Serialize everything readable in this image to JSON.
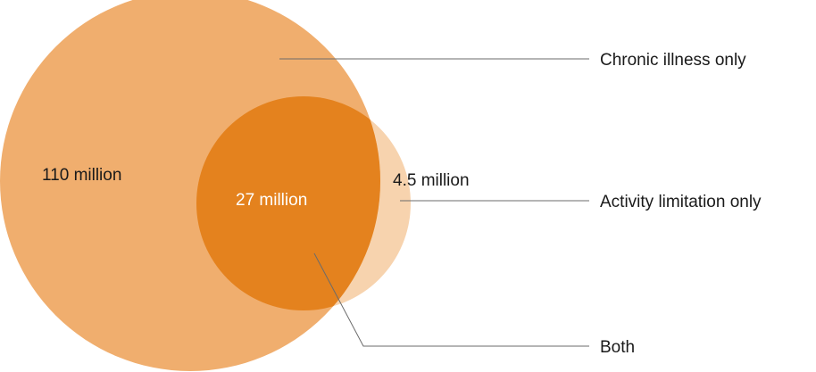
{
  "diagram": {
    "type": "venn",
    "sets": [
      {
        "key": "chronic_illness",
        "callout": "Chronic illness only",
        "value_label": "110 million",
        "color": "#F0AE6E"
      },
      {
        "key": "activity_limitation",
        "callout": "Activity limitation only",
        "value_label": "4.5 million",
        "color": "#F7D3AE"
      }
    ],
    "intersection": {
      "callout": "Both",
      "value_label": "27 million",
      "color": "#E4821E"
    },
    "label_colors": {
      "dark": "#1a1a1a",
      "light": "#ffffff"
    },
    "leader_line_color": "#6b6b6b"
  }
}
